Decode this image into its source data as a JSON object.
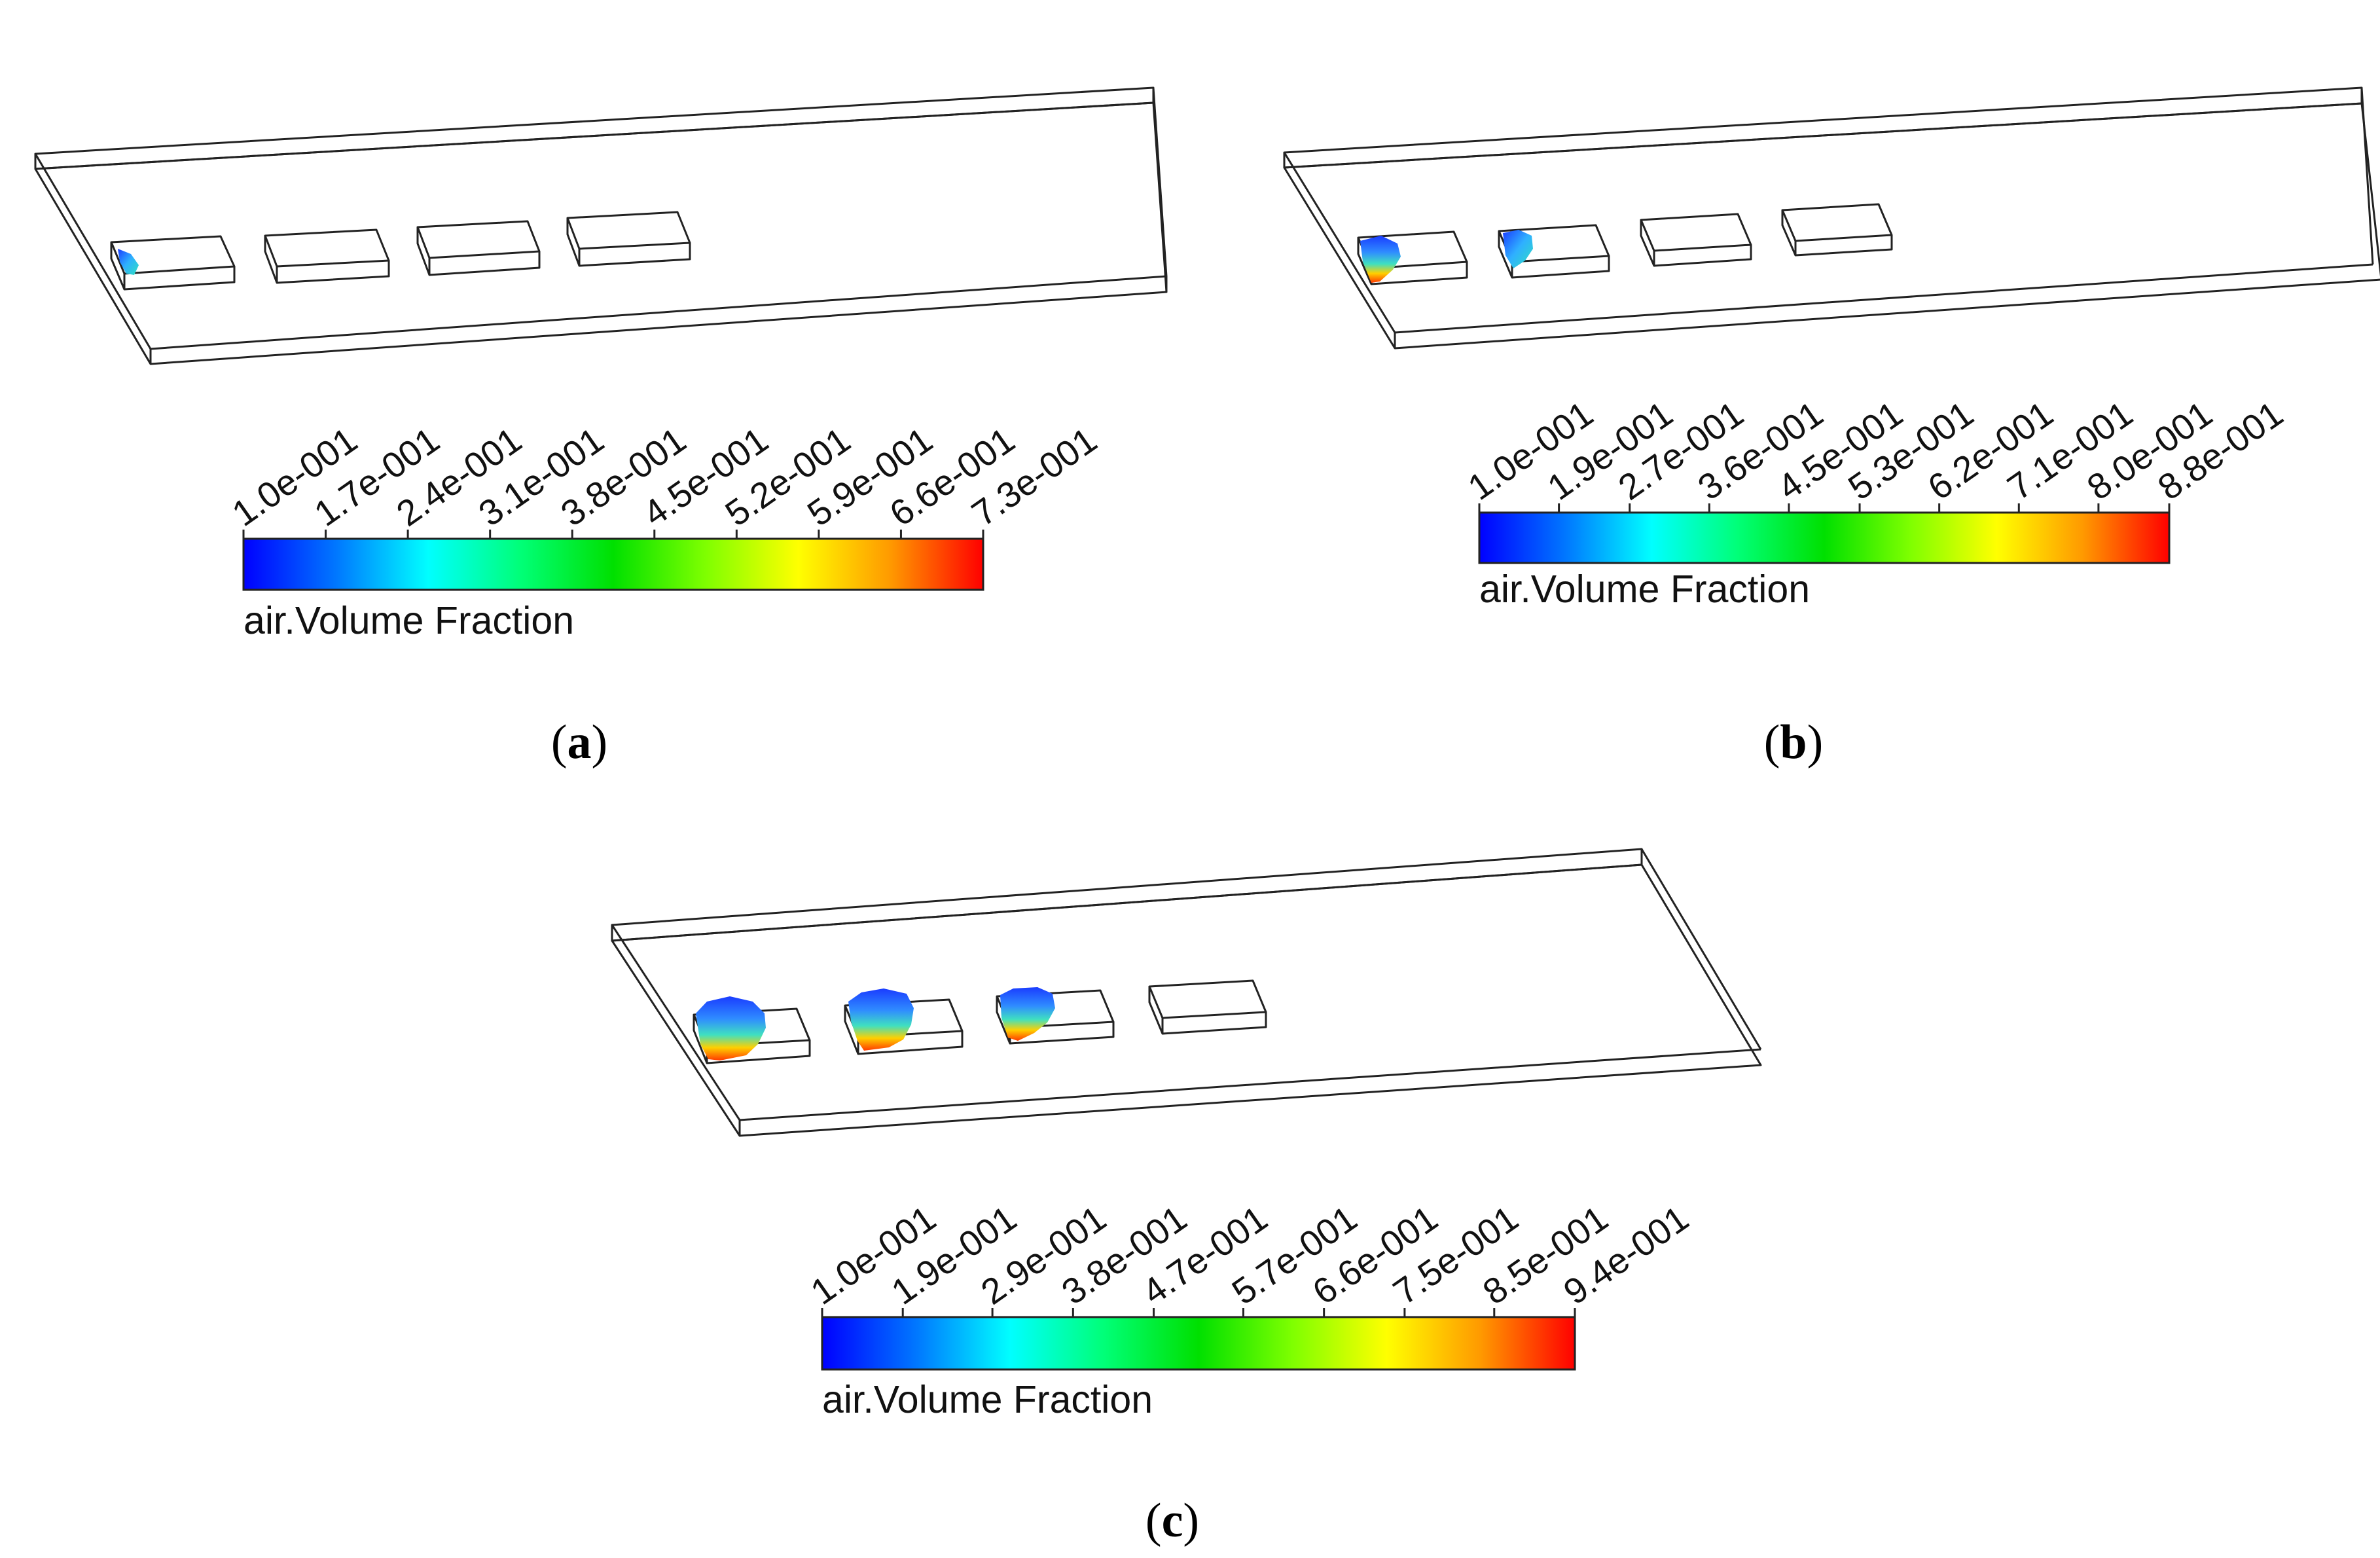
{
  "colormap": {
    "stops": [
      "#0000ff",
      "#0077ff",
      "#00ffff",
      "#00ff77",
      "#00e000",
      "#7fff00",
      "#ffff00",
      "#ff9900",
      "#ff0000"
    ]
  },
  "panels": [
    {
      "id": "a",
      "caption_open": "(",
      "caption_letter": "a",
      "caption_close": ")",
      "legend_title": "air.Volume Fraction",
      "tick_labels": [
        "1.0e-001",
        "1.7e-001",
        "2.4e-001",
        "3.1e-001",
        "3.8e-001",
        "4.5e-001",
        "5.2e-001",
        "5.9e-001",
        "6.6e-001",
        "7.3e-001"
      ],
      "tick_values": [
        0.1,
        0.17,
        0.24,
        0.31,
        0.38,
        0.45,
        0.52,
        0.59,
        0.66,
        0.73
      ],
      "cavities": [
        {
          "label": "cavity-1",
          "air_fraction_shown": "small"
        },
        {
          "label": "cavity-2",
          "air_fraction_shown": "none"
        },
        {
          "label": "cavity-3",
          "air_fraction_shown": "none"
        },
        {
          "label": "cavity-4",
          "air_fraction_shown": "none"
        }
      ]
    },
    {
      "id": "b",
      "caption_open": "(",
      "caption_letter": "b",
      "caption_close": ")",
      "legend_title": "air.Volume Fraction",
      "tick_labels": [
        "1.0e-001",
        "1.9e-001",
        "2.7e-001",
        "3.6e-001",
        "4.5e-001",
        "5.3e-001",
        "6.2e-001",
        "7.1e-001",
        "8.0e-001",
        "8.8e-001"
      ],
      "tick_values": [
        0.1,
        0.19,
        0.27,
        0.36,
        0.45,
        0.53,
        0.62,
        0.71,
        0.8,
        0.88
      ],
      "cavities": [
        {
          "label": "cavity-1",
          "air_fraction_shown": "medium"
        },
        {
          "label": "cavity-2",
          "air_fraction_shown": "small"
        },
        {
          "label": "cavity-3",
          "air_fraction_shown": "none"
        },
        {
          "label": "cavity-4",
          "air_fraction_shown": "none"
        }
      ]
    },
    {
      "id": "c",
      "caption_open": "(",
      "caption_letter": "c",
      "caption_close": ")",
      "legend_title": "air.Volume Fraction",
      "tick_labels": [
        "1.0e-001",
        "1.9e-001",
        "2.9e-001",
        "3.8e-001",
        "4.7e-001",
        "5.7e-001",
        "6.6e-001",
        "7.5e-001",
        "8.5e-001",
        "9.4e-001"
      ],
      "tick_values": [
        0.1,
        0.19,
        0.29,
        0.38,
        0.47,
        0.57,
        0.66,
        0.75,
        0.85,
        0.94
      ],
      "cavities": [
        {
          "label": "cavity-1",
          "air_fraction_shown": "large"
        },
        {
          "label": "cavity-2",
          "air_fraction_shown": "large"
        },
        {
          "label": "cavity-3",
          "air_fraction_shown": "medium"
        },
        {
          "label": "cavity-4",
          "air_fraction_shown": "none"
        }
      ]
    }
  ]
}
